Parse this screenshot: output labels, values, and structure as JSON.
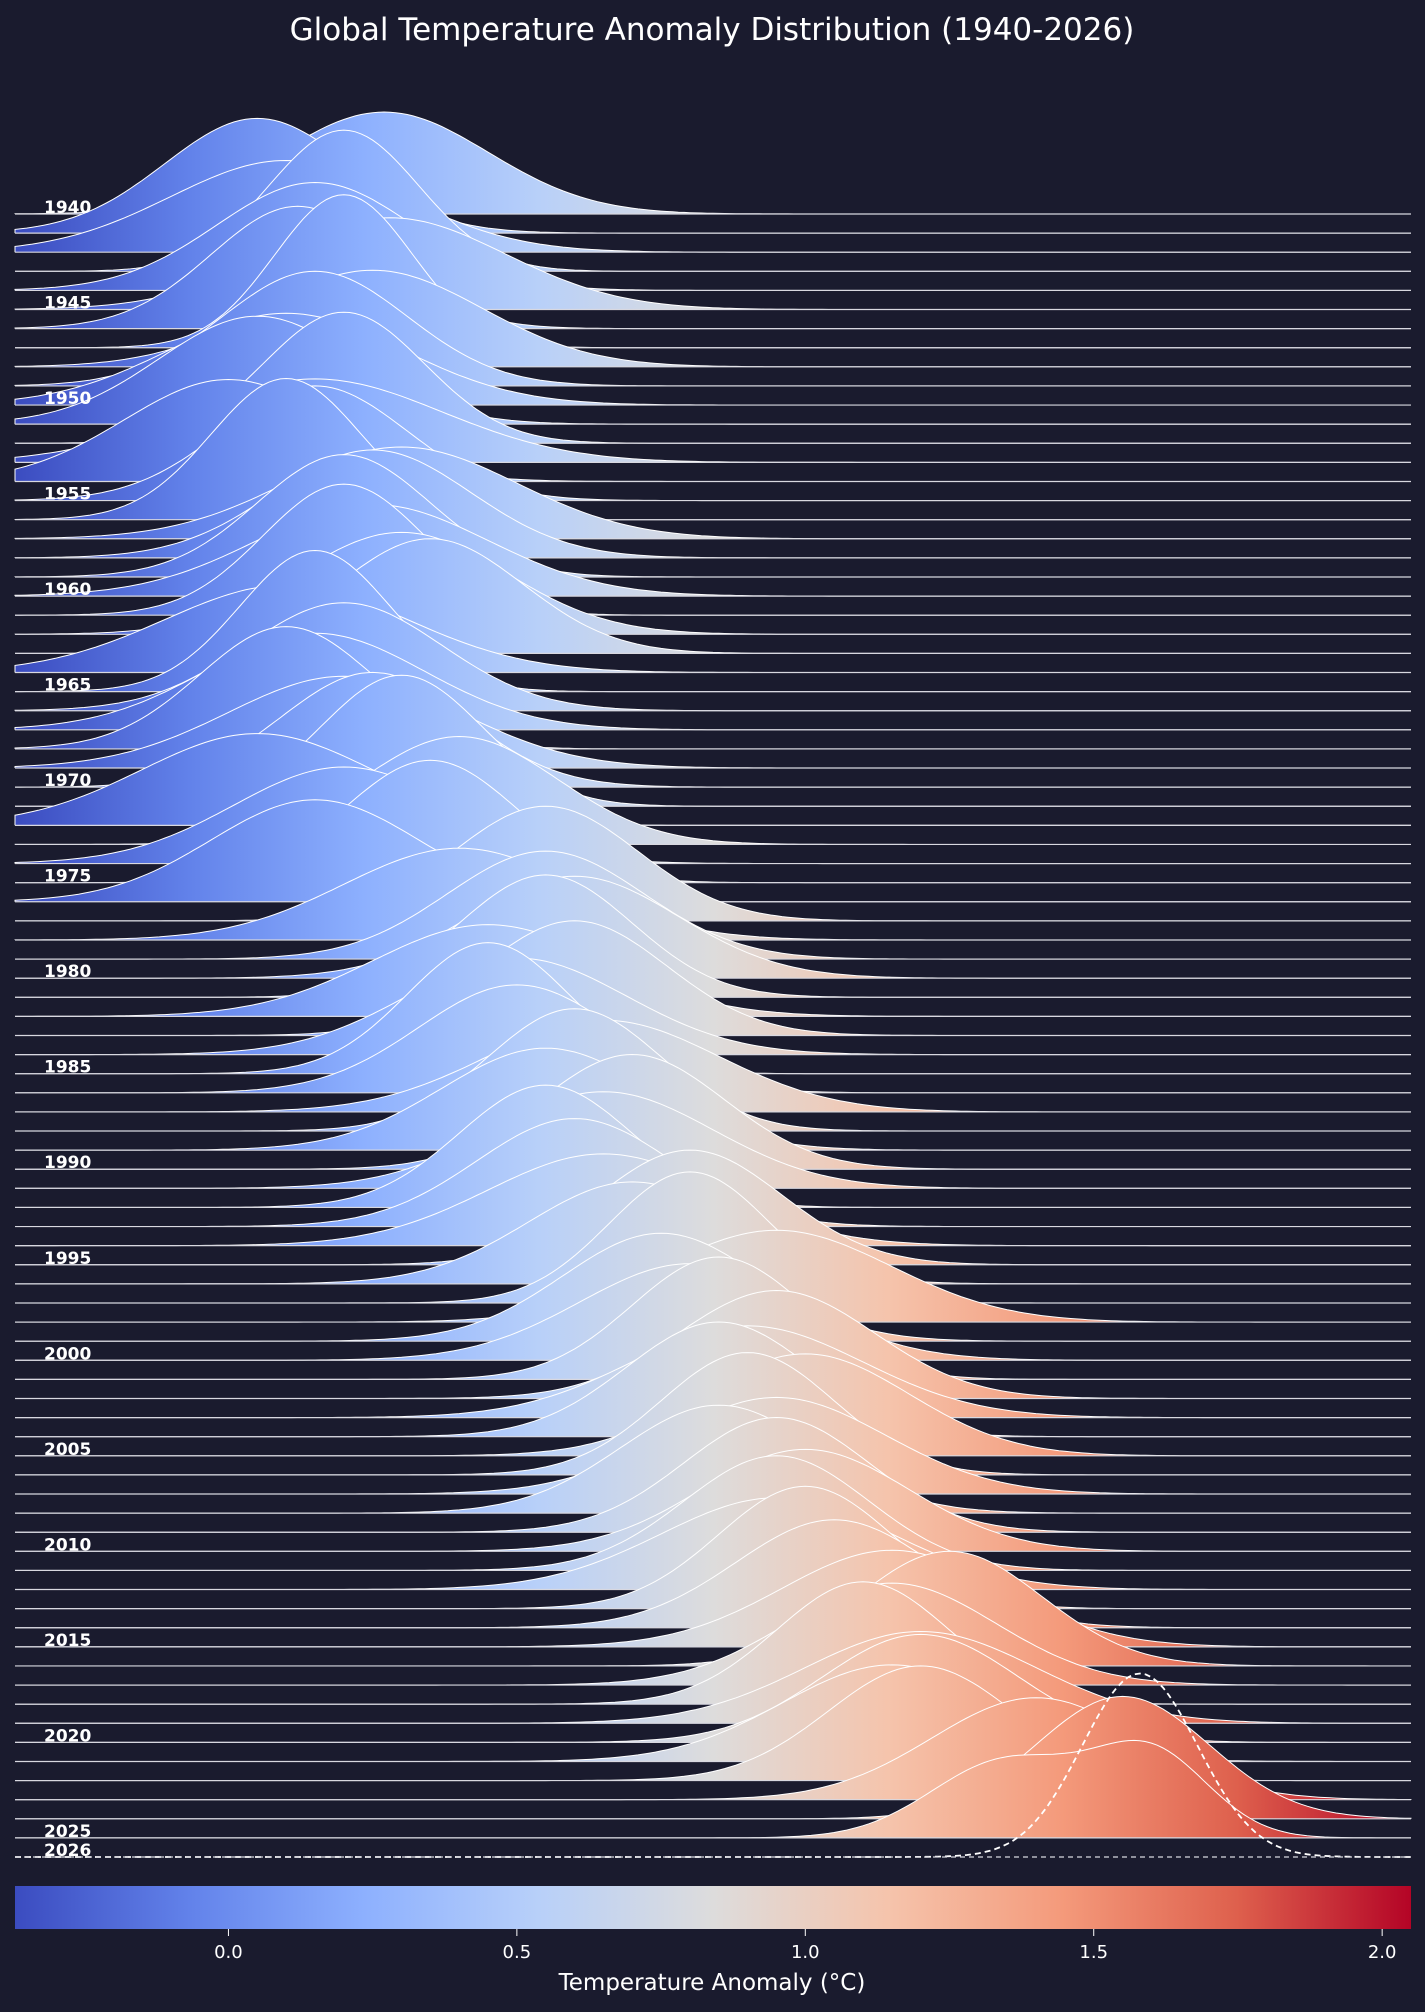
{
  "chart_data": {
    "type": "ridgeline",
    "title": "Global Temperature Anomaly Distribution (1940-2026)",
    "xlabel": "Temperature Anomaly (°C)",
    "xlim": [
      -0.37,
      2.05
    ],
    "colormap": "coolwarm",
    "colorbar": {
      "vmin": -0.37,
      "vmax": 2.05,
      "ticks": [
        "0.0",
        "0.5",
        "1.0",
        "1.5",
        "2.0"
      ],
      "tick_values": [
        0,
        0.5,
        1.0,
        1.5,
        2.0
      ],
      "label": "Temperature Anomaly (°C)"
    },
    "year_start": 1940,
    "year_end": 2026,
    "labeled_years": [
      "1940",
      "1945",
      "1950",
      "1955",
      "1960",
      "1965",
      "1970",
      "1975",
      "1980",
      "1985",
      "1990",
      "1995",
      "2000",
      "2005",
      "2010",
      "2015",
      "2020",
      "2025",
      "2026"
    ],
    "partial_year": 2026,
    "means": [
      0.27,
      0.05,
      0.1,
      0.2,
      0.15,
      0.28,
      0.12,
      0.2,
      0.25,
      0.15,
      0.1,
      0.05,
      0.2,
      0.15,
      0.0,
      0.15,
      0.1,
      0.3,
      0.25,
      0.2,
      0.25,
      0.2,
      0.3,
      0.35,
      0.1,
      0.15,
      0.2,
      0.15,
      0.1,
      0.2,
      0.25,
      0.3,
      0.05,
      0.4,
      0.2,
      0.35,
      0.15,
      0.55,
      0.4,
      0.55,
      0.6,
      0.55,
      0.45,
      0.6,
      0.5,
      0.45,
      0.5,
      0.65,
      0.6,
      0.55,
      0.7,
      0.65,
      0.55,
      0.6,
      0.65,
      0.8,
      0.7,
      0.8,
      0.95,
      0.75,
      0.8,
      0.85,
      0.95,
      0.9,
      0.85,
      1.0,
      0.9,
      0.95,
      0.85,
      0.95,
      1.0,
      0.95,
      0.95,
      1.0,
      1.05,
      1.15,
      1.25,
      1.15,
      1.1,
      1.2,
      1.2,
      1.15,
      1.2,
      1.4,
      1.55,
      1.45,
      1.58
    ],
    "sds": [
      0.18,
      0.16,
      0.2,
      0.13,
      0.17,
      0.2,
      0.15,
      0.12,
      0.19,
      0.16,
      0.2,
      0.17,
      0.14,
      0.22,
      0.18,
      0.16,
      0.13,
      0.2,
      0.17,
      0.15,
      0.2,
      0.14,
      0.18,
      0.16,
      0.21,
      0.13,
      0.17,
      0.19,
      0.15,
      0.2,
      0.16,
      0.14,
      0.2,
      0.17,
      0.19,
      0.15,
      0.18,
      0.16,
      0.2,
      0.17,
      0.18,
      0.15,
      0.2,
      0.16,
      0.19,
      0.14,
      0.17,
      0.2,
      0.15,
      0.18,
      0.16,
      0.19,
      0.15,
      0.17,
      0.2,
      0.16,
      0.18,
      0.14,
      0.2,
      0.17,
      0.19,
      0.15,
      0.17,
      0.2,
      0.16,
      0.18,
      0.15,
      0.19,
      0.17,
      0.16,
      0.18,
      0.16,
      0.2,
      0.15,
      0.17,
      0.19,
      0.16,
      0.18,
      0.15,
      0.2,
      0.17,
      0.19,
      0.16,
      0.18,
      0.15,
      0.2,
      0.1
    ]
  }
}
